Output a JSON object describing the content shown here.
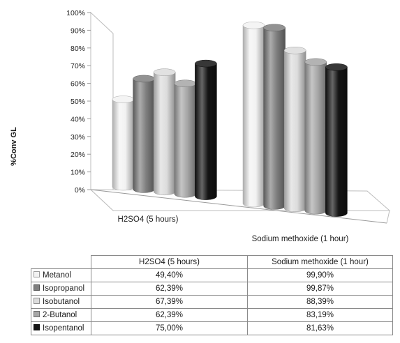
{
  "chart_data": {
    "type": "bar",
    "ylabel": "%Conv GL",
    "ylim": [
      0,
      100
    ],
    "y_ticks": [
      "0%",
      "10%",
      "20%",
      "30%",
      "40%",
      "50%",
      "60%",
      "70%",
      "80%",
      "90%",
      "100%"
    ],
    "categories": [
      "H2SO4 (5 hours)",
      "Sodium methoxide (1 hour)"
    ],
    "series": [
      {
        "name": "Metanol",
        "color": "#f2f2f2",
        "values": [
          49.4,
          99.9
        ],
        "labels": [
          "49,40%",
          "99,90%"
        ]
      },
      {
        "name": "Isopropanol",
        "color": "#7f7f7f",
        "values": [
          62.39,
          99.87
        ],
        "labels": [
          "62,39%",
          "99,87%"
        ]
      },
      {
        "name": "Isobutanol",
        "color": "#dcdcdc",
        "values": [
          67.39,
          88.39
        ],
        "labels": [
          "67,39%",
          "88,39%"
        ]
      },
      {
        "name": "2-Butanol",
        "color": "#a6a6a6",
        "values": [
          62.39,
          83.19
        ],
        "labels": [
          "62,39%",
          "83,19%"
        ]
      },
      {
        "name": "Isopentanol",
        "color": "#141414",
        "values": [
          75.0,
          81.63
        ],
        "labels": [
          "75,00%",
          "81,63%"
        ]
      }
    ],
    "grid": false,
    "legend": "data table below chart"
  }
}
